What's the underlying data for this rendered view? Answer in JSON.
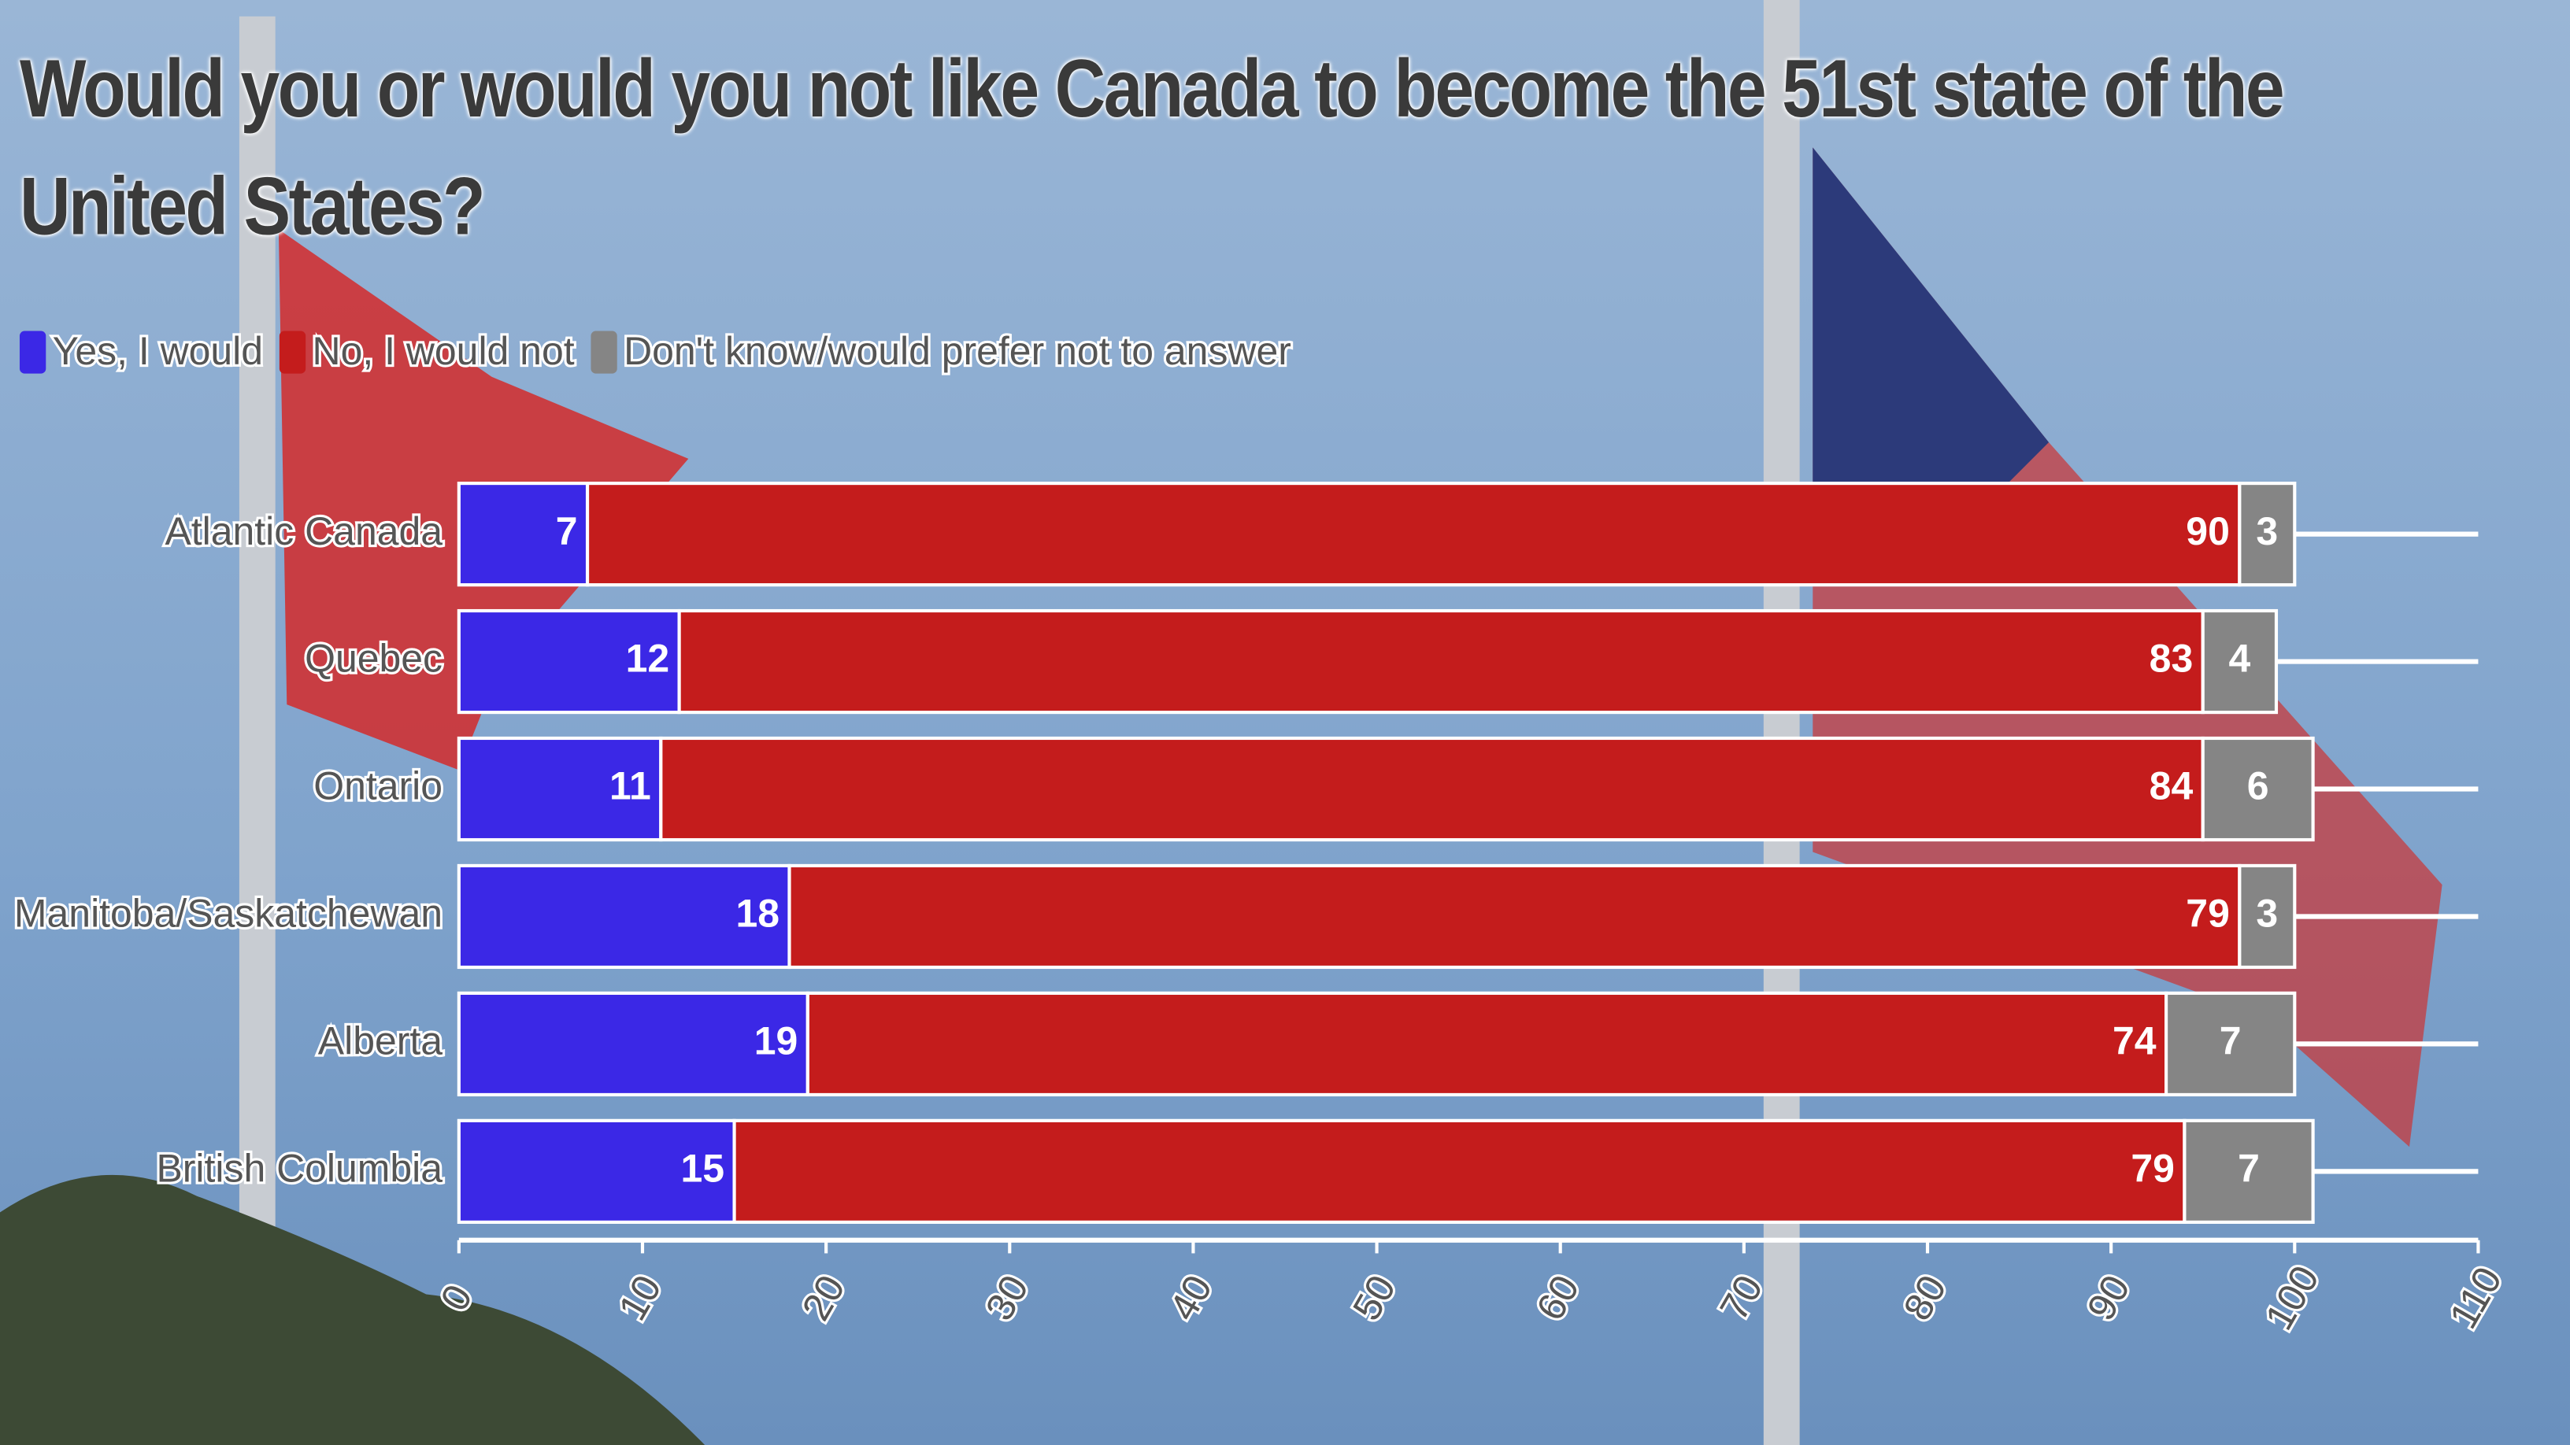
{
  "chart_data": {
    "type": "stacked-bar-horizontal",
    "title": "Would you or would you not like Canada to become the 51st state of the United States?",
    "categories": [
      "Atlantic Canada",
      "Quebec",
      "Ontario",
      "Manitoba/Saskatchewan",
      "Alberta",
      "British Columbia"
    ],
    "series": [
      {
        "name": "Yes, I would",
        "color": "#3b28e6",
        "values": [
          7,
          12,
          11,
          18,
          19,
          15
        ]
      },
      {
        "name": "No, I would not",
        "color": "#c41c1c",
        "values": [
          90,
          83,
          84,
          79,
          74,
          79
        ]
      },
      {
        "name": "Don't know/would prefer not to answer",
        "color": "#858585",
        "values": [
          3,
          4,
          6,
          3,
          7,
          7
        ]
      }
    ],
    "xlim": [
      0,
      110
    ],
    "xticks": [
      0,
      10,
      20,
      30,
      40,
      50,
      60,
      70,
      80,
      90,
      100,
      110
    ],
    "legend": "top-left"
  }
}
